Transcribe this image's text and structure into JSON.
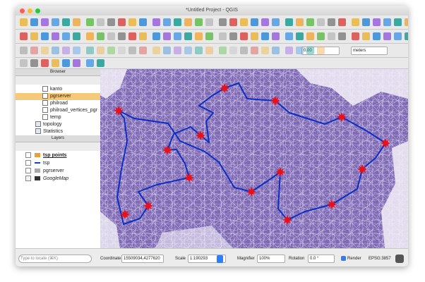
{
  "window": {
    "title": "*Untitled Project - QGIS"
  },
  "toolbar": {
    "measure_value": "0.00",
    "units": "meters"
  },
  "browser": {
    "title": "Browser",
    "items": [
      "kanto",
      "pgrserver",
      "philroad",
      "philroad_vertices_pgr",
      "temp",
      "topology",
      "Statistics"
    ]
  },
  "layers": {
    "title": "Layers",
    "items": [
      "tsp points",
      "tsp",
      "pgrserver",
      "GoogleMap"
    ]
  },
  "status": {
    "locate": "Type to locate (⌘K)",
    "coordinate_label": "Coordinate",
    "coordinate": "15509034,4277620",
    "scale_label": "Scale",
    "scale": "1:190293",
    "magnifier_label": "Magnifier",
    "magnifier": "100%",
    "rotation_label": "Rotation",
    "rotation": "0.0 °",
    "render": "Render",
    "crs": "EPSG:3857"
  }
}
